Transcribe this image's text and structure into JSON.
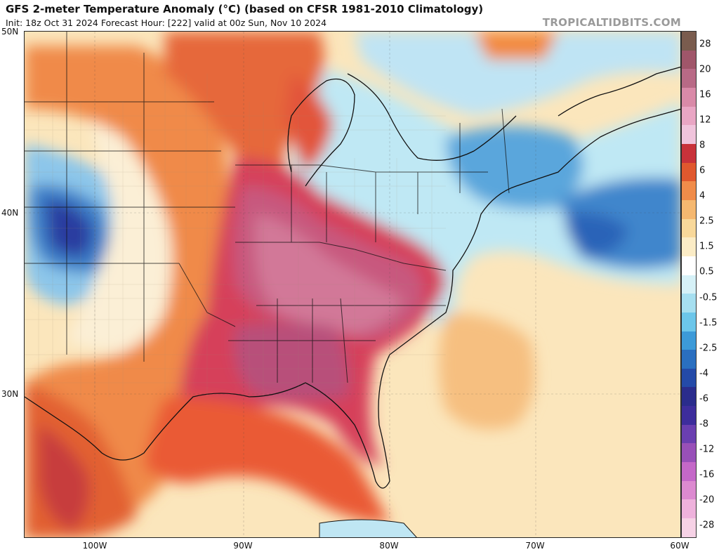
{
  "header": {
    "title": "GFS 2-meter Temperature Anomaly (°C) (based on CFSR 1981-2010 Climatology)",
    "subtitle": "Init: 18z Oct 31 2024   Forecast Hour: [222]   valid at 00z Sun, Nov 10 2024",
    "brand": "TROPICALTIDBITS.COM"
  },
  "map": {
    "lat_labels": [
      "50N",
      "40N",
      "30N"
    ],
    "lon_labels": [
      "100W",
      "90W",
      "80W",
      "70W",
      "60W"
    ]
  },
  "colorbar": {
    "labels": [
      "28",
      "20",
      "16",
      "12",
      "8",
      "6",
      "4",
      "2.5",
      "1.5",
      "0.5",
      "-0.5",
      "-1.5",
      "-2.5",
      "-4",
      "-6",
      "-8",
      "-12",
      "-16",
      "-20",
      "-28"
    ],
    "colors": [
      "#7a5c4e",
      "#a0566a",
      "#b86a86",
      "#d98aa8",
      "#e9a6c4",
      "#f0c4dc",
      "#c8323a",
      "#e0582e",
      "#f08c4a",
      "#f5b870",
      "#f8d89a",
      "#fbecc6",
      "#ffffff",
      "#d6f1f7",
      "#a6dff0",
      "#6cc6ea",
      "#3c9ad8",
      "#2a6fc0",
      "#244aa8",
      "#2a2c8c",
      "#3d2d9c",
      "#6a3fb0",
      "#9850b8",
      "#c468c8",
      "#dc8ad0",
      "#eeb2dc",
      "#f6d2e6"
    ]
  }
}
